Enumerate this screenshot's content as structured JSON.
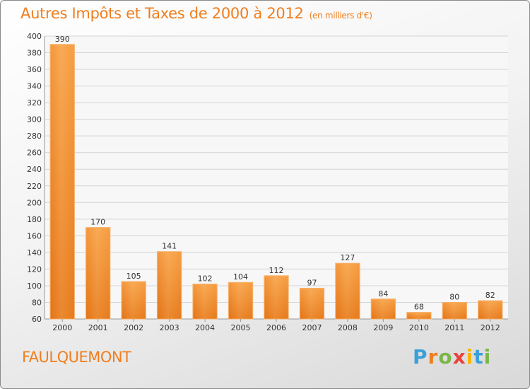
{
  "title": "Autres Impôts et Taxes de 2000 à 2012",
  "unit": "(en milliers d'€)",
  "place": "FAULQUEMONT",
  "logo": {
    "letters": [
      "P",
      "r",
      "o",
      "x",
      "i",
      "t",
      "i"
    ],
    "colors": [
      "#3aa0d8",
      "#f07e1e",
      "#7ab648",
      "#e8433b",
      "#f7b500",
      "#3aa0d8",
      "#7ab648"
    ]
  },
  "colors": {
    "bar": "#f08a25",
    "bar_light": "#f9b060",
    "accent": "#f07e1e"
  },
  "chart_data": {
    "type": "bar",
    "categories": [
      "2000",
      "2001",
      "2002",
      "2003",
      "2004",
      "2005",
      "2006",
      "2007",
      "2008",
      "2009",
      "2010",
      "2011",
      "2012"
    ],
    "values": [
      390,
      170,
      105,
      141,
      102,
      104,
      112,
      97,
      127,
      84,
      68,
      80,
      82
    ],
    "ylim": [
      60,
      400
    ],
    "yticks": [
      60,
      80,
      100,
      120,
      140,
      160,
      180,
      200,
      220,
      240,
      260,
      280,
      300,
      320,
      340,
      360,
      380,
      400
    ],
    "grid": true,
    "title": "Autres Impôts et Taxes de 2000 à 2012",
    "xlabel": "",
    "ylabel": ""
  }
}
